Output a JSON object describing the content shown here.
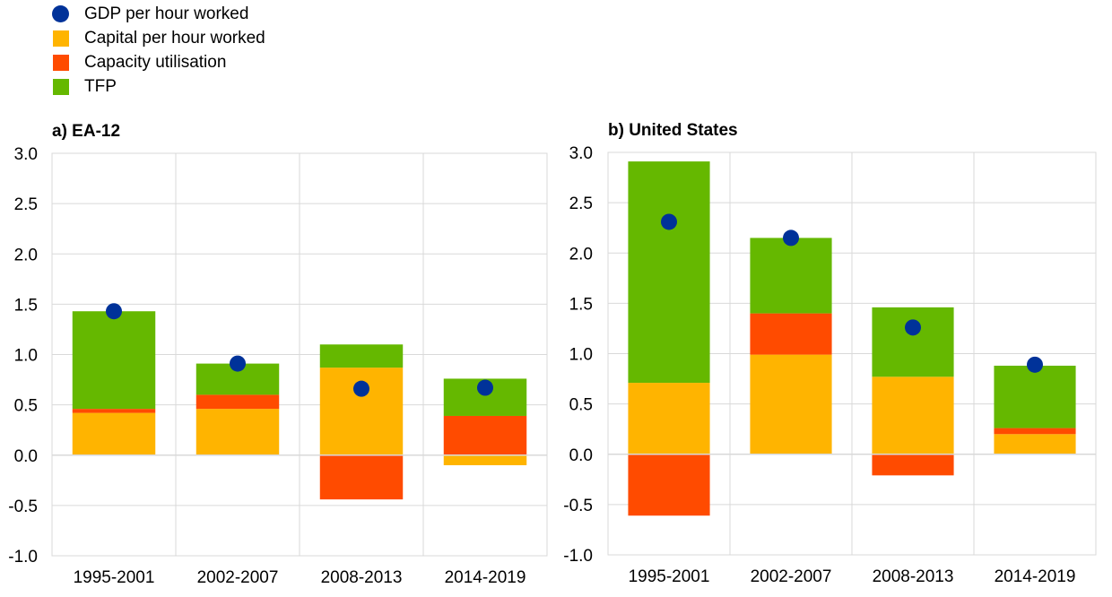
{
  "legend": [
    {
      "label": "GDP per hour worked",
      "color": "#003299",
      "marker": "dot"
    },
    {
      "label": "Capital per hour worked",
      "color": "#ffb400",
      "marker": "square"
    },
    {
      "label": "Capacity utilisation",
      "color": "#ff4b00",
      "marker": "square"
    },
    {
      "label": "TFP",
      "color": "#65b800",
      "marker": "square"
    }
  ],
  "chart_data": [
    {
      "type": "bar",
      "stacked": true,
      "title": "a) EA-12",
      "categories": [
        "1995-2001",
        "2002-2007",
        "2008-2013",
        "2014-2019"
      ],
      "ylim": [
        -1.0,
        3.0
      ],
      "yticks": [
        "3.0",
        "2.5",
        "2.0",
        "1.5",
        "1.0",
        "0.5",
        "0.0",
        "-0.5",
        "-1.0"
      ],
      "series": [
        {
          "name": "Capital per hour worked",
          "color": "#ffb400",
          "values": [
            0.42,
            0.46,
            0.87,
            -0.1
          ]
        },
        {
          "name": "Capacity utilisation",
          "color": "#ff4b00",
          "values": [
            0.04,
            0.14,
            -0.44,
            0.39
          ]
        },
        {
          "name": "TFP",
          "color": "#65b800",
          "values": [
            0.97,
            0.31,
            0.23,
            0.37
          ]
        }
      ],
      "line_series": {
        "name": "GDP per hour worked",
        "color": "#003299",
        "values": [
          1.43,
          0.91,
          0.66,
          0.67
        ]
      }
    },
    {
      "type": "bar",
      "stacked": true,
      "title": "b) United States",
      "categories": [
        "1995-2001",
        "2002-2007",
        "2008-2013",
        "2014-2019"
      ],
      "ylim": [
        -1.0,
        3.0
      ],
      "yticks": [
        "3.0",
        "2.5",
        "2.0",
        "1.5",
        "1.0",
        "0.5",
        "0.0",
        "-0.5",
        "-1.0"
      ],
      "series": [
        {
          "name": "Capital per hour worked",
          "color": "#ffb400",
          "values": [
            0.71,
            0.99,
            0.77,
            0.2
          ]
        },
        {
          "name": "Capacity utilisation",
          "color": "#ff4b00",
          "values": [
            -0.61,
            0.41,
            -0.21,
            0.06
          ]
        },
        {
          "name": "TFP",
          "color": "#65b800",
          "values": [
            2.2,
            0.75,
            0.69,
            0.62
          ]
        }
      ],
      "line_series": {
        "name": "GDP per hour worked",
        "color": "#003299",
        "values": [
          2.31,
          2.15,
          1.26,
          0.89
        ]
      }
    }
  ]
}
